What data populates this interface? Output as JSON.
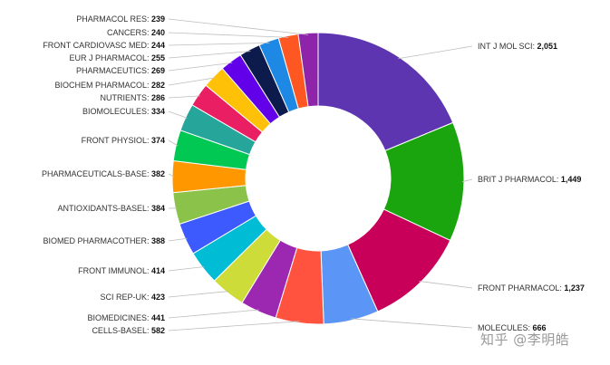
{
  "chart_data": {
    "type": "pie",
    "donut": true,
    "title": "",
    "slices": [
      {
        "label": "INT J MOL SCI",
        "value": "2,051",
        "color": "#5e35b1"
      },
      {
        "label": "BRIT J PHARMACOL",
        "value": "1,449",
        "color": "#1aa50f"
      },
      {
        "label": "FRONT PHARMACOL",
        "value": "1,237",
        "color": "#c8005a"
      },
      {
        "label": "MOLECULES",
        "value": "666",
        "color": "#5b95f5"
      },
      {
        "label": "CELLS-BASEL",
        "value": "582",
        "color": "#ff5340"
      },
      {
        "label": "BIOMEDICINES",
        "value": "441",
        "color": "#9c27b0"
      },
      {
        "label": "SCI REP-UK",
        "value": "423",
        "color": "#cddc39"
      },
      {
        "label": "FRONT IMMUNOL",
        "value": "414",
        "color": "#00bcd4"
      },
      {
        "label": "BIOMED PHARMACOTHER",
        "value": "388",
        "color": "#3d5afe"
      },
      {
        "label": "ANTIOXIDANTS-BASEL",
        "value": "384",
        "color": "#8bc34a"
      },
      {
        "label": "PHARMACEUTICALS-BASE",
        "value": "382",
        "color": "#ff9800"
      },
      {
        "label": "FRONT PHYSIOL",
        "value": "374",
        "color": "#00c853"
      },
      {
        "label": "BIOMOLECULES",
        "value": "334",
        "color": "#26a69a"
      },
      {
        "label": "NUTRIENTS",
        "value": "286",
        "color": "#e91e63"
      },
      {
        "label": "BIOCHEM PHARMACOL",
        "value": "282",
        "color": "#ffc107"
      },
      {
        "label": "PHARMACEUTICS",
        "value": "269",
        "color": "#6200ea"
      },
      {
        "label": "EUR J PHARMACOL",
        "value": "255",
        "color": "#0d1b4c"
      },
      {
        "label": "FRONT CARDIOVASC MED",
        "value": "244",
        "color": "#1e88e5"
      },
      {
        "label": "CANCERS",
        "value": "240",
        "color": "#ff5722"
      },
      {
        "label": "PHARMACOL RES",
        "value": "239",
        "color": "#8e24aa"
      }
    ]
  },
  "watermark": "知乎 @李明皓"
}
